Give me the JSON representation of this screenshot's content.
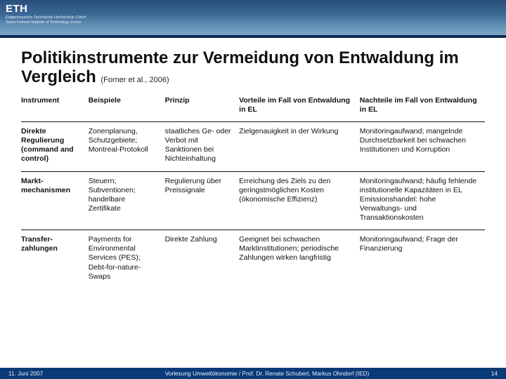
{
  "banner": {
    "logo": "ETH",
    "logo_sub1": "Eidgenössische Technische Hochschule Zürich",
    "logo_sub2": "Swiss Federal Institute of Technology Zurich",
    "bg_gradient": [
      "#2a4d7a",
      "#3a6795",
      "#5f8db3",
      "#7da6c3"
    ],
    "rule_color": "#0b2e55"
  },
  "title": {
    "main": "Politikinstrumente zur Vermeidung von Entwaldung im Vergleich",
    "citation": "(Forner et al., 2006)"
  },
  "table": {
    "type": "table",
    "font_size_pt": 10.5,
    "border_color": "#111111",
    "col_widths_pct": [
      14.5,
      16.5,
      16,
      26,
      27
    ],
    "columns": [
      "Instrument",
      "Beispiele",
      "Prinzip",
      "Vorteile im Fall von Entwaldung in EL",
      "Nachteile im Fall von Entwaldung in EL"
    ],
    "rows": [
      {
        "instrument": "Direkte Regulierung (command and control)",
        "beispiele": "Zonenplanung, Schutzgebiete; Montreal-Protokoll",
        "prinzip": "staatliches Ge- oder Verbot mit Sanktionen bei Nichteinhaltung",
        "vorteile": "Zielgenauigkeit in der Wirkung",
        "nachteile": "Monitoringaufwand; mangelnde Durchsetzbarkeit bei schwachen Institutionen und Korruption"
      },
      {
        "instrument": "Markt-mechanismen",
        "beispiele": "Steuern; Subventionen; handelbare Zertifikate",
        "prinzip": "Regulierung über Preissignale",
        "vorteile": "Erreichung des Ziels zu den geringstmöglichen Kosten (ökonomische Effizienz)",
        "nachteile": "Monitoringaufwand; häufig fehlende institutionelle Kapazitäten in EL Emissionshandel: hohe Verwaltungs- und Transaktionskosten"
      },
      {
        "instrument": "Transfer-zahlungen",
        "beispiele": "Payments for Environmental Services (PES); Debt-for-nature-Swaps",
        "prinzip": "Direkte Zahlung",
        "vorteile": "Geeignet bei schwachen Marktinstitutionen; periodische Zahlungen wirken langfristig",
        "nachteile": "Monitoringaufwand; Frage der Finanzierung"
      }
    ]
  },
  "footer": {
    "date": "11. Juni 2007",
    "middle": "Vorlesung Umweltökonomie / Prof. Dr. Renate Schubert, Markus Ohndorf (IED)",
    "page": "14",
    "bg": "#0b3a78",
    "fg": "#e8f0fb"
  }
}
